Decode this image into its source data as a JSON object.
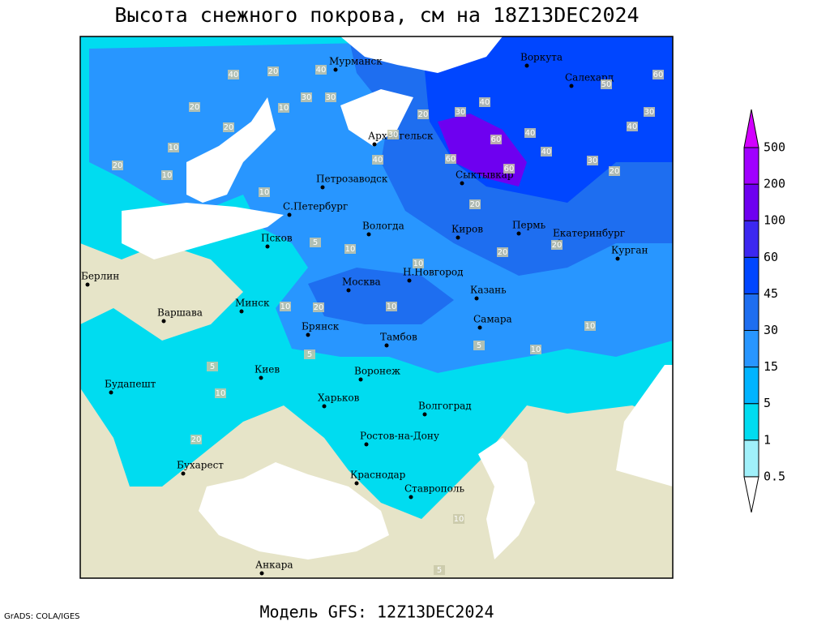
{
  "header": {
    "title": "Высота снежного покрова, см на 18Z13DEC2024"
  },
  "footer": {
    "model": "Модель GFS: 12Z13DEC2024",
    "credit": "GrADS: COLA/IGES"
  },
  "legend": {
    "levels": [
      0.5,
      1,
      5,
      15,
      30,
      45,
      60,
      100,
      200,
      500
    ],
    "colors": [
      "#ffffff",
      "#a0f0fa",
      "#00dcf0",
      "#00b4ff",
      "#2896ff",
      "#1e6ef0",
      "#0046ff",
      "#3c28f0",
      "#6e00f0",
      "#a000ff",
      "#d200ff"
    ]
  },
  "cities": [
    "Мурманск",
    "Воркута",
    "Салехард",
    "Архангельск",
    "Сыктывкар",
    "Петрозаводск",
    "С.Петербург",
    "Вологда",
    "Киров",
    "Пермь",
    "Екатеринбург",
    "Курган",
    "Псков",
    "Берлин",
    "Москва",
    "Н.Новгород",
    "Казань",
    "Варшава",
    "Минск",
    "Самара",
    "Брянск",
    "Тамбов",
    "Киев",
    "Воронеж",
    "Будапешт",
    "Харьков",
    "Волгоград",
    "Ростов-на-Дону",
    "Бухарест",
    "Краснодар",
    "Ставрополь",
    "Анкара"
  ],
  "contour_labels": [
    "40",
    "20",
    "40",
    "30",
    "30",
    "20",
    "10",
    "20",
    "10",
    "20",
    "10",
    "30",
    "40",
    "60",
    "40",
    "60",
    "40",
    "30",
    "20",
    "40",
    "30",
    "60",
    "50",
    "60",
    "40",
    "30",
    "20",
    "10",
    "20",
    "20",
    "10",
    "20",
    "10",
    "5",
    "10",
    "20",
    "10",
    "5",
    "10",
    "5",
    "10",
    "5",
    "10",
    "20",
    "10",
    "5"
  ]
}
